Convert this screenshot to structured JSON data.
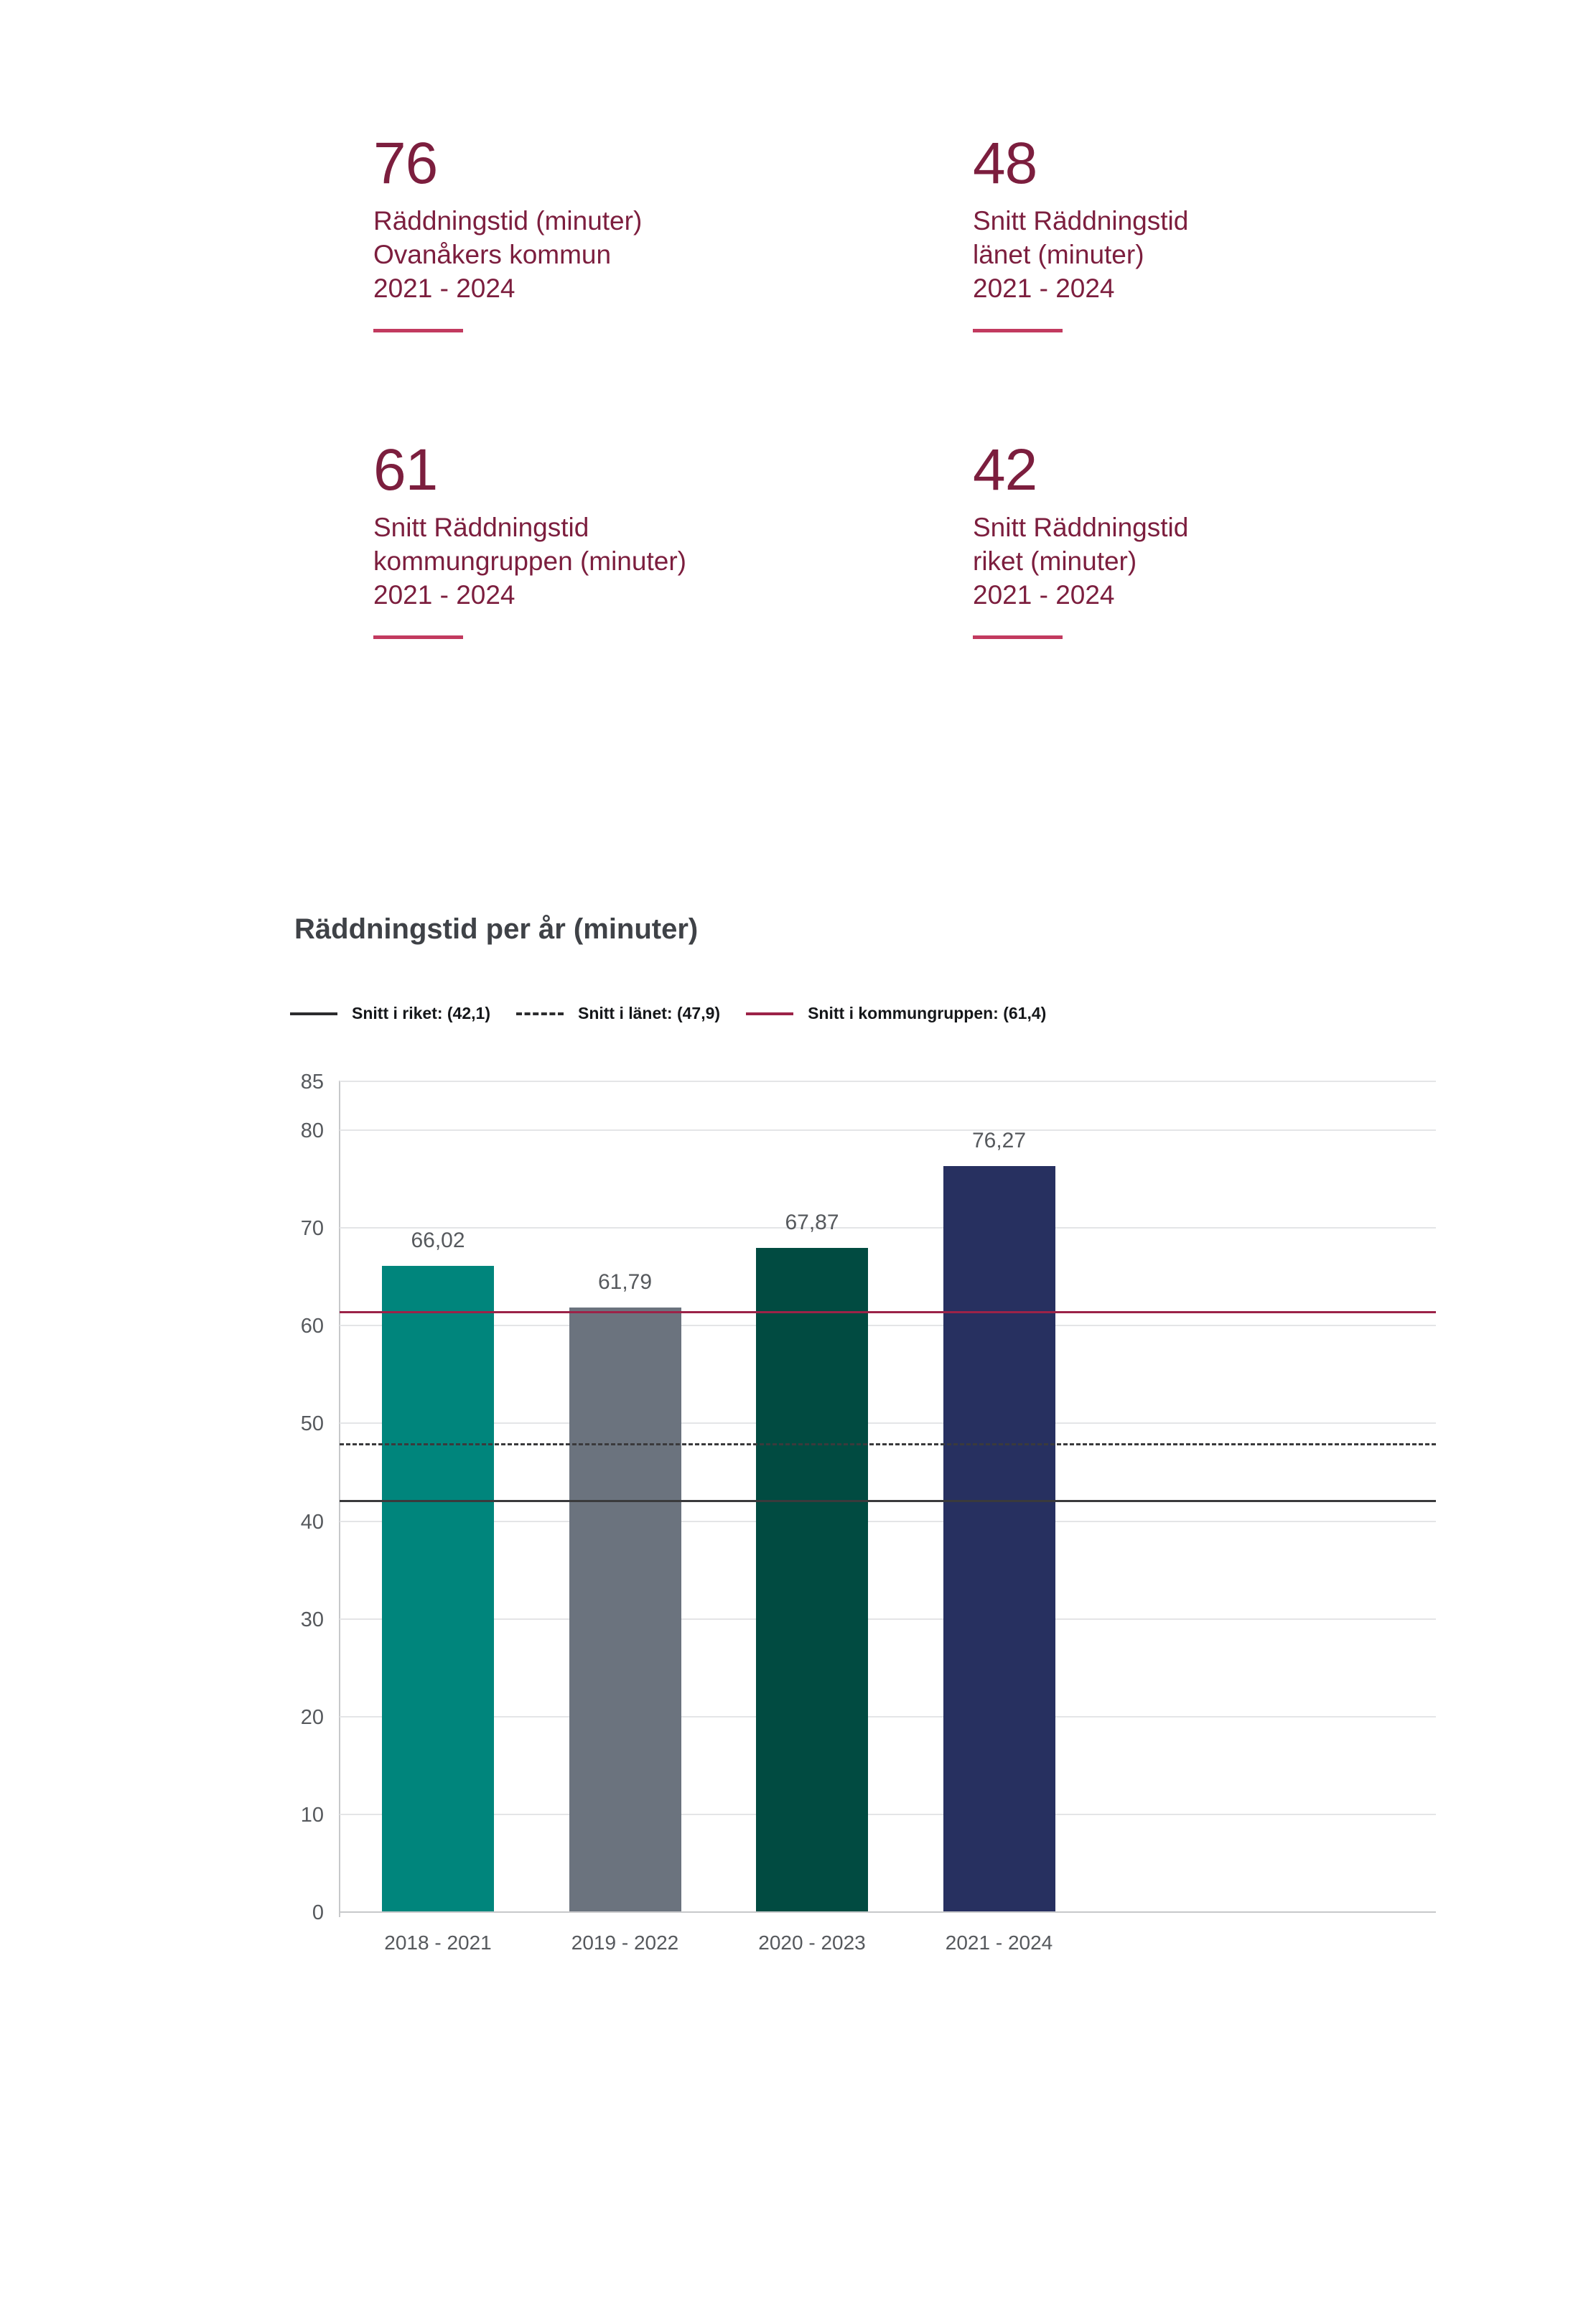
{
  "stats": [
    {
      "value": "76",
      "lines": [
        "Räddningstid (minuter)",
        "Ovanåkers kommun",
        "2021 - 2024"
      ]
    },
    {
      "value": "48",
      "lines": [
        "Snitt Räddningstid",
        "länet (minuter)",
        "2021 - 2024"
      ]
    },
    {
      "value": "61",
      "lines": [
        "Snitt Räddningstid",
        "kommungruppen (minuter)",
        "2021 - 2024"
      ]
    },
    {
      "value": "42",
      "lines": [
        "Snitt Räddningstid",
        "riket (minuter)",
        "2021 - 2024"
      ]
    }
  ],
  "chart": {
    "title": "Räddningstid per år (minuter)"
  },
  "chart_data": {
    "type": "bar",
    "title": "Räddningstid per år (minuter)",
    "categories": [
      "2018 - 2021",
      "2019 - 2022",
      "2020 - 2023",
      "2021 - 2024"
    ],
    "values": [
      66.02,
      61.79,
      67.87,
      76.27
    ],
    "value_labels": [
      "66,02",
      "61,79",
      "67,87",
      "76,27"
    ],
    "bar_colors": [
      "#00857c",
      "#6b737e",
      "#014b41",
      "#273060"
    ],
    "xlabel": "",
    "ylabel": "",
    "ylim": [
      0,
      85
    ],
    "yticks": [
      0,
      10,
      20,
      30,
      40,
      50,
      60,
      70,
      80,
      85
    ],
    "grid": true,
    "legend_position": "top",
    "reference_lines": [
      {
        "label": "Snitt i riket: (42,1)",
        "value": 42.1,
        "style": "solid",
        "color": "#3a3a3c"
      },
      {
        "label": "Snitt i länet: (47,9)",
        "value": 47.9,
        "style": "dashed",
        "color": "#3a3a3c"
      },
      {
        "label": "Snitt i kommungruppen: (61,4)",
        "value": 61.4,
        "style": "solid",
        "color": "#9c2348"
      }
    ]
  },
  "colors": {
    "stat_text": "#7c1e3e",
    "stat_rule": "#c23a5f",
    "title_text": "#3f4247",
    "axis_text": "#56595d",
    "gridline": "#e4e5e7",
    "axis_line": "#c7c8ca"
  }
}
